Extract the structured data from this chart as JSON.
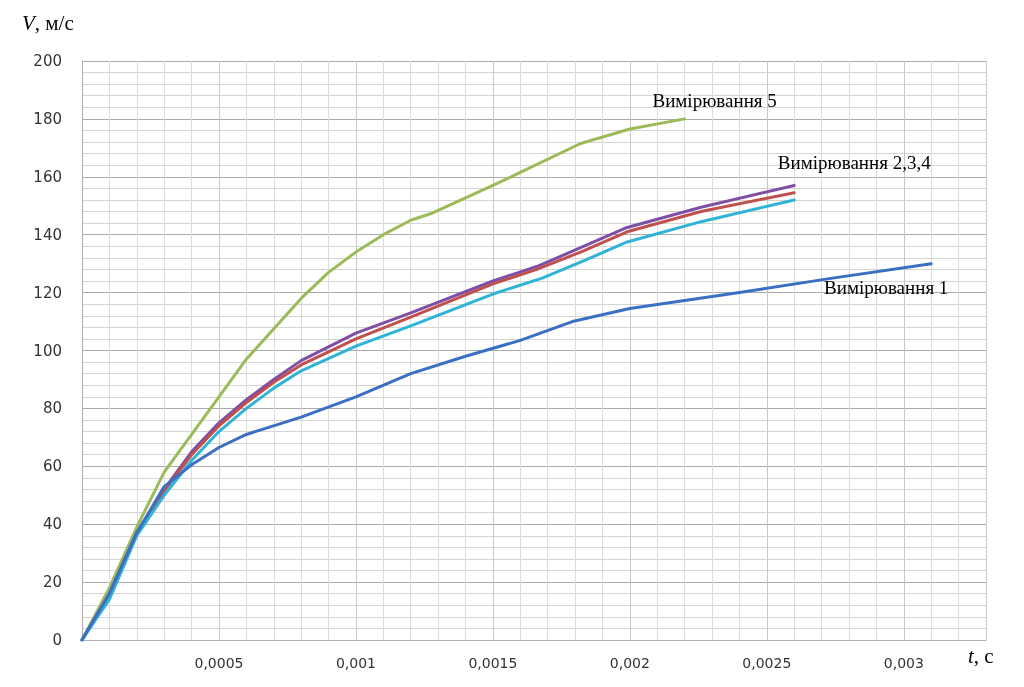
{
  "chart_data": {
    "type": "line",
    "xlabel": "t, c",
    "ylabel": "V, м/с",
    "xlim": [
      0,
      0.0033
    ],
    "ylim": [
      0,
      200
    ],
    "xticks": [
      {
        "value": 0,
        "label": null
      },
      {
        "value": 0.0005,
        "label": "0,0005"
      },
      {
        "value": 0.001,
        "label": "0,001"
      },
      {
        "value": 0.0015,
        "label": "0,0015"
      },
      {
        "value": 0.002,
        "label": "0,002"
      },
      {
        "value": 0.0025,
        "label": "0,0025"
      },
      {
        "value": 0.003,
        "label": "0,003"
      }
    ],
    "yticks": [
      0,
      20,
      40,
      60,
      80,
      100,
      120,
      140,
      160,
      180,
      200
    ],
    "grid": true,
    "legend": false,
    "marker": "none",
    "line_style": "solid",
    "series": [
      {
        "name": "Вимірювання 5",
        "color": "#9bbb59",
        "x": [
          0,
          0.0001,
          0.0002,
          0.0003,
          0.0005,
          0.0006,
          0.0008,
          0.0009,
          0.001,
          0.0011,
          0.0012,
          0.00128,
          0.0015,
          0.0016,
          0.00182,
          0.002,
          0.0022
        ],
        "values": [
          0,
          18,
          39,
          58,
          84,
          97,
          118,
          127,
          134,
          140,
          145,
          147.5,
          157,
          161.5,
          171.5,
          176.5,
          180
        ]
      },
      {
        "name": "Вимірювання 2,3,4",
        "color": "#7f4fa6",
        "x": [
          0,
          0.0001,
          0.0002,
          0.0003,
          0.0004,
          0.0005,
          0.0006,
          0.0007,
          0.0008,
          0.001,
          0.0012,
          0.0015,
          0.00166,
          0.00182,
          0.00199,
          0.00226,
          0.0026
        ],
        "values": [
          0,
          16,
          37,
          52,
          65,
          75,
          83,
          90,
          96.5,
          106,
          113,
          124,
          129,
          135.5,
          142.5,
          149.5,
          157
        ]
      },
      {
        "color": "#c0504d",
        "x": [
          0.0002,
          0.0003,
          0.0004,
          0.0005,
          0.0006,
          0.0007,
          0.0008,
          0.001,
          0.0012,
          0.0015,
          0.00166,
          0.00182,
          0.00199,
          0.00226,
          0.0026
        ],
        "values": [
          37,
          51.5,
          64,
          74,
          82,
          89,
          95,
          104,
          111.5,
          123,
          128,
          134,
          141,
          148,
          154.5
        ]
      },
      {
        "color": "#2fb4d8",
        "x": [
          0,
          0.0001,
          0.0002,
          0.0003,
          0.0004,
          0.0005,
          0.0006,
          0.0007,
          0.0008,
          0.001,
          0.0012,
          0.0015,
          0.00168,
          0.00182,
          0.00199,
          0.00226,
          0.0026
        ],
        "values": [
          0,
          14,
          36,
          50,
          62,
          72,
          80,
          87,
          93,
          101.5,
          108.5,
          119.5,
          125,
          130.5,
          137.5,
          144.5,
          152
        ]
      },
      {
        "name": "Вимірювання 1",
        "color": "#3a6fc2",
        "x": [
          0,
          0.0001,
          0.0002,
          0.0003,
          0.0004,
          0.0005,
          0.0006,
          0.0008,
          0.001,
          0.0012,
          0.0014,
          0.0016,
          0.00179,
          0.002,
          0.0024,
          0.00274,
          0.0031
        ],
        "values": [
          0,
          16,
          37,
          53,
          60.5,
          66.5,
          71,
          77,
          84,
          92,
          98,
          103.5,
          110,
          114.5,
          120,
          125,
          130
        ]
      }
    ]
  }
}
